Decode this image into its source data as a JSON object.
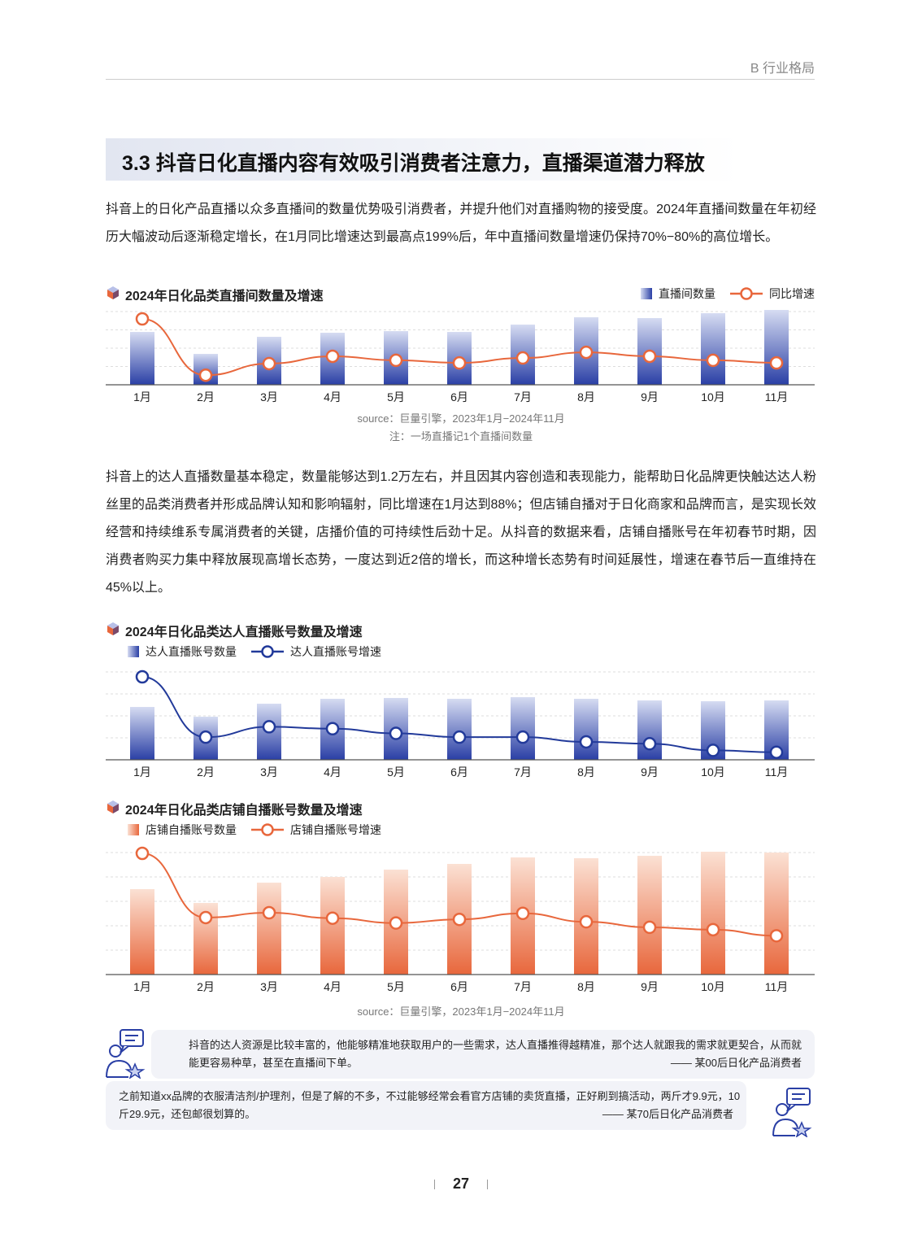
{
  "header": {
    "section": "B 行业格局"
  },
  "title": "3.3 抖音日化直播内容有效吸引消费者注意力，直播渠道潜力释放",
  "paragraphs": [
    "抖音上的日化产品直播以众多直播间的数量优势吸引消费者，并提升他们对直播购物的接受度。2024年直播间数量在年初经历大幅波动后逐渐稳定增长，在1月同比增速达到最高点199%后，年中直播间数量增速仍保持70%−80%的高位增长。",
    "抖音上的达人直播数量基本稳定，数量能够达到1.2万左右，并且因其内容创造和表现能力，能帮助日化品牌更快触达达人粉丝里的品类消费者并形成品牌认知和影响辐射，同比增速在1月达到88%；但店铺自播对于日化商家和品牌而言，是实现长效经营和持续维系专属消费者的关键，店播价值的可持续性后劲十足。从抖音的数据来看，店铺自播账号在年初春节时期，因消费者购买力集中释放展现高增长态势，一度达到近2倍的增长，而这种增长态势有时间延展性，增速在春节后一直维持在45%以上。"
  ],
  "chart_data": [
    {
      "type": "bar+line",
      "title": "2024年日化品类直播间数量及增速",
      "categories": [
        "1月",
        "2月",
        "3月",
        "4月",
        "5月",
        "6月",
        "7月",
        "8月",
        "9月",
        "10月",
        "11月"
      ],
      "series": [
        {
          "name": "直播间数量",
          "type": "bar",
          "values": [
            65,
            38,
            59,
            64,
            66,
            65,
            74,
            83,
            82,
            88,
            92
          ]
        },
        {
          "name": "同比增速",
          "type": "line",
          "unit": "%",
          "values": [
            199,
            29,
            64,
            86,
            74,
            66,
            81,
            98,
            86,
            74,
            66
          ]
        }
      ],
      "colors": {
        "bar_top": "#d6dcf2",
        "bar_bottom": "#2a3fa5",
        "line": "#e8673c"
      },
      "source": "source：巨量引擎，2023年1月−2024年11月",
      "note": "注：一场直播记1个直播间数量"
    },
    {
      "type": "bar+line",
      "title": "2024年日化品类达人直播账号数量及增速",
      "categories": [
        "1月",
        "2月",
        "3月",
        "4月",
        "5月",
        "6月",
        "7月",
        "8月",
        "9月",
        "10月",
        "11月"
      ],
      "series": [
        {
          "name": "达人直播账号数量",
          "type": "bar",
          "values": [
            65,
            53,
            69,
            75,
            76,
            75,
            77,
            75,
            73,
            72,
            73
          ]
        },
        {
          "name": "达人直播账号增速",
          "type": "line",
          "unit": "%",
          "values": [
            88,
            24,
            35,
            33,
            28,
            24,
            24,
            19,
            17,
            10,
            8
          ]
        }
      ],
      "colors": {
        "bar_top": "#d6dcf2",
        "bar_bottom": "#2a3fa5",
        "line": "#223a9a"
      }
    },
    {
      "type": "bar+line",
      "title": "2024年日化品类店铺自播账号数量及增速",
      "categories": [
        "1月",
        "2月",
        "3月",
        "4月",
        "5月",
        "6月",
        "7月",
        "8月",
        "9月",
        "10月",
        "11月"
      ],
      "series": [
        {
          "name": "店铺自播账号数量",
          "type": "bar",
          "values": [
            105,
            88,
            113,
            120,
            129,
            136,
            144,
            143,
            146,
            151,
            150
          ]
        },
        {
          "name": "店铺自播账号增速",
          "type": "line",
          "unit": "%",
          "values": [
            200,
            94,
            102,
            93,
            85,
            91,
            101,
            87,
            78,
            74,
            64
          ]
        }
      ],
      "colors": {
        "bar_top": "#fbe1d4",
        "bar_bottom": "#e8673c",
        "line": "#e8673c"
      },
      "source": "source：巨量引擎，2023年1月−2024年11月"
    }
  ],
  "quotes": [
    {
      "text": "抖音的达人资源是比较丰富的，他能够精准地获取用户的一些需求，达人直播推得越精准，那个达人就跟我的需求就更契合，从而就能更容易种草，甚至在直播间下单。",
      "author": "—— 某00后日化产品消费者"
    },
    {
      "text": "之前知道xx品牌的衣服清洁剂/护理剂，但是了解的不多，不过能够经常会看官方店铺的卖货直播，正好刷到搞活动，两斤才9.9元，10斤29.9元，还包邮很划算的。",
      "author": "—— 某70后日化产品消费者"
    }
  ],
  "page_number": "27"
}
